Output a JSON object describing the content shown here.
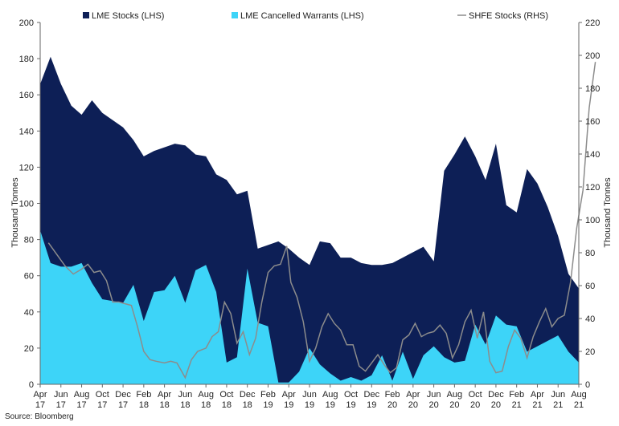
{
  "chart_data": {
    "type": "area",
    "source_text": "Source: Bloomberg",
    "left_axis": {
      "label": "Thousand Tonnes",
      "min": 0,
      "max": 200,
      "ticks": [
        0,
        20,
        40,
        60,
        80,
        100,
        120,
        140,
        160,
        180,
        200
      ]
    },
    "right_axis": {
      "label": "Thousand Tonnes",
      "min": 0,
      "max": 220,
      "ticks": [
        0,
        20,
        40,
        60,
        80,
        100,
        120,
        140,
        160,
        180,
        200,
        220
      ]
    },
    "x_tick_labels": [
      {
        "month": "Apr",
        "year": "17"
      },
      {
        "month": "Jun",
        "year": "17"
      },
      {
        "month": "Aug",
        "year": "17"
      },
      {
        "month": "Oct",
        "year": "17"
      },
      {
        "month": "Dec",
        "year": "17"
      },
      {
        "month": "Feb",
        "year": "18"
      },
      {
        "month": "Apr",
        "year": "18"
      },
      {
        "month": "Jun",
        "year": "18"
      },
      {
        "month": "Aug",
        "year": "18"
      },
      {
        "month": "Oct",
        "year": "18"
      },
      {
        "month": "Dec",
        "year": "18"
      },
      {
        "month": "Feb",
        "year": "19"
      },
      {
        "month": "Apr",
        "year": "19"
      },
      {
        "month": "Jun",
        "year": "19"
      },
      {
        "month": "Aug",
        "year": "19"
      },
      {
        "month": "Oct",
        "year": "19"
      },
      {
        "month": "Dec",
        "year": "19"
      },
      {
        "month": "Feb",
        "year": "20"
      },
      {
        "month": "Apr",
        "year": "20"
      },
      {
        "month": "Jun",
        "year": "20"
      },
      {
        "month": "Aug",
        "year": "20"
      },
      {
        "month": "Oct",
        "year": "20"
      },
      {
        "month": "Dec",
        "year": "20"
      },
      {
        "month": "Feb",
        "year": "21"
      },
      {
        "month": "Apr",
        "year": "21"
      },
      {
        "month": "Jun",
        "year": "21"
      },
      {
        "month": "Aug",
        "year": "21"
      }
    ],
    "series": [
      {
        "name": "LME Stocks (LHS)",
        "axis": "left",
        "color": "#0d1f56",
        "points": [
          [
            0,
            166
          ],
          [
            0.5,
            181
          ],
          [
            1,
            166
          ],
          [
            1.5,
            154
          ],
          [
            2,
            149
          ],
          [
            2.5,
            157
          ],
          [
            3,
            150
          ],
          [
            3.5,
            146
          ],
          [
            4,
            142
          ],
          [
            4.5,
            135
          ],
          [
            5,
            126
          ],
          [
            5.5,
            129
          ],
          [
            6,
            131
          ],
          [
            6.5,
            133
          ],
          [
            7,
            132
          ],
          [
            7.5,
            127
          ],
          [
            8,
            126
          ],
          [
            8.5,
            116
          ],
          [
            9,
            113
          ],
          [
            9.5,
            105
          ],
          [
            10,
            107
          ],
          [
            10.5,
            75
          ],
          [
            11,
            77
          ],
          [
            11.5,
            79
          ],
          [
            12,
            75
          ],
          [
            12.5,
            70
          ],
          [
            13,
            66
          ],
          [
            13.5,
            79
          ],
          [
            14,
            78
          ],
          [
            14.5,
            70
          ],
          [
            15,
            70
          ],
          [
            15.5,
            67
          ],
          [
            16,
            66
          ],
          [
            16.5,
            66
          ],
          [
            17,
            67
          ],
          [
            17.5,
            70
          ],
          [
            18,
            73
          ],
          [
            18.5,
            76
          ],
          [
            19,
            68
          ],
          [
            19.5,
            118
          ],
          [
            20,
            127
          ],
          [
            20.5,
            137
          ],
          [
            21,
            126
          ],
          [
            21.5,
            113
          ],
          [
            22,
            133
          ],
          [
            22.5,
            99
          ],
          [
            23,
            95
          ],
          [
            23.5,
            119
          ],
          [
            24,
            111
          ],
          [
            24.5,
            98
          ],
          [
            25,
            82
          ],
          [
            25.5,
            61
          ],
          [
            26,
            53
          ]
        ]
      },
      {
        "name": "LME Cancelled Warrants (LHS)",
        "axis": "left",
        "color": "#3dd4f8",
        "points": [
          [
            0,
            85
          ],
          [
            0.5,
            67
          ],
          [
            1,
            65
          ],
          [
            1.5,
            65
          ],
          [
            2,
            67
          ],
          [
            2.5,
            56
          ],
          [
            3,
            47
          ],
          [
            3.5,
            46
          ],
          [
            4,
            45
          ],
          [
            4.5,
            55
          ],
          [
            5,
            35
          ],
          [
            5.5,
            51
          ],
          [
            6,
            52
          ],
          [
            6.5,
            60
          ],
          [
            7,
            45
          ],
          [
            7.5,
            63
          ],
          [
            8,
            66
          ],
          [
            8.5,
            51
          ],
          [
            9,
            12
          ],
          [
            9.5,
            15
          ],
          [
            10,
            64
          ],
          [
            10.5,
            34
          ],
          [
            11,
            32
          ],
          [
            11.5,
            1
          ],
          [
            12,
            1
          ],
          [
            12.5,
            7
          ],
          [
            13,
            20
          ],
          [
            13.5,
            11
          ],
          [
            14,
            6
          ],
          [
            14.5,
            2
          ],
          [
            15,
            4
          ],
          [
            15.5,
            2
          ],
          [
            16,
            5
          ],
          [
            16.5,
            16
          ],
          [
            17,
            2
          ],
          [
            17.5,
            18
          ],
          [
            18,
            3
          ],
          [
            18.5,
            16
          ],
          [
            19,
            21
          ],
          [
            19.5,
            15
          ],
          [
            20,
            12
          ],
          [
            20.5,
            13
          ],
          [
            21,
            33
          ],
          [
            21.5,
            22
          ],
          [
            22,
            38
          ],
          [
            22.5,
            33
          ],
          [
            23,
            32
          ],
          [
            23.5,
            18
          ],
          [
            24,
            21
          ],
          [
            24.5,
            24
          ],
          [
            25,
            27
          ],
          [
            25.5,
            18
          ],
          [
            26,
            12
          ]
        ]
      },
      {
        "name": "SHFE Stocks (RHS)",
        "axis": "right",
        "color": "#8c8c8c",
        "points": [
          [
            0.4,
            86
          ],
          [
            0.8,
            79
          ],
          [
            1.2,
            72
          ],
          [
            1.6,
            67
          ],
          [
            2,
            70
          ],
          [
            2.3,
            73
          ],
          [
            2.6,
            68
          ],
          [
            2.9,
            69
          ],
          [
            3.2,
            63
          ],
          [
            3.5,
            50
          ],
          [
            3.8,
            50
          ],
          [
            4.1,
            49
          ],
          [
            4.4,
            48
          ],
          [
            4.7,
            35
          ],
          [
            5,
            20
          ],
          [
            5.3,
            15
          ],
          [
            5.6,
            14
          ],
          [
            6,
            13
          ],
          [
            6.3,
            14
          ],
          [
            6.6,
            13
          ],
          [
            7,
            4
          ],
          [
            7.3,
            15
          ],
          [
            7.6,
            20
          ],
          [
            8,
            22
          ],
          [
            8.3,
            29
          ],
          [
            8.6,
            32
          ],
          [
            8.9,
            50
          ],
          [
            9.2,
            43
          ],
          [
            9.5,
            25
          ],
          [
            9.8,
            32
          ],
          [
            10.1,
            18
          ],
          [
            10.4,
            28
          ],
          [
            10.7,
            50
          ],
          [
            11,
            68
          ],
          [
            11.3,
            72
          ],
          [
            11.6,
            73
          ],
          [
            11.9,
            84
          ],
          [
            12.1,
            62
          ],
          [
            12.4,
            53
          ],
          [
            12.7,
            38
          ],
          [
            13,
            14
          ],
          [
            13.3,
            22
          ],
          [
            13.6,
            35
          ],
          [
            13.9,
            43
          ],
          [
            14.2,
            37
          ],
          [
            14.5,
            33
          ],
          [
            14.8,
            24
          ],
          [
            15.1,
            24
          ],
          [
            15.4,
            11
          ],
          [
            15.7,
            8
          ],
          [
            16,
            13
          ],
          [
            16.3,
            18
          ],
          [
            16.6,
            12
          ],
          [
            16.9,
            7
          ],
          [
            17.2,
            10
          ],
          [
            17.5,
            27
          ],
          [
            17.8,
            30
          ],
          [
            18.1,
            37
          ],
          [
            18.4,
            29
          ],
          [
            18.7,
            31
          ],
          [
            19,
            32
          ],
          [
            19.3,
            36
          ],
          [
            19.6,
            31
          ],
          [
            19.9,
            16
          ],
          [
            20.2,
            24
          ],
          [
            20.5,
            38
          ],
          [
            20.8,
            45
          ],
          [
            21.1,
            28
          ],
          [
            21.4,
            44
          ],
          [
            21.7,
            14
          ],
          [
            22,
            7
          ],
          [
            22.3,
            8
          ],
          [
            22.6,
            23
          ],
          [
            22.9,
            33
          ],
          [
            23.2,
            28
          ],
          [
            23.5,
            16
          ],
          [
            23.8,
            29
          ],
          [
            24.1,
            38
          ],
          [
            24.4,
            46
          ],
          [
            24.7,
            35
          ],
          [
            25,
            40
          ],
          [
            25.3,
            42
          ],
          [
            25.6,
            62
          ],
          [
            25.9,
            95
          ],
          [
            26.2,
            118
          ],
          [
            26.5,
            168
          ],
          [
            26.8,
            196
          ]
        ]
      }
    ],
    "legend": {
      "position": "top"
    }
  }
}
